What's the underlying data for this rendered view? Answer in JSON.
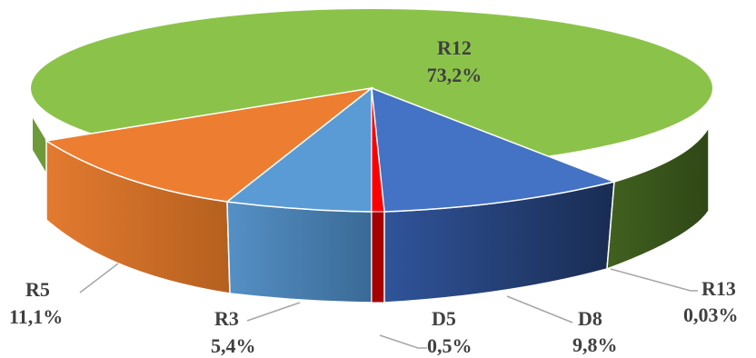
{
  "chart_data": {
    "type": "pie",
    "style": "3d",
    "title": "",
    "slices": [
      {
        "name": "R12",
        "value": 73.2,
        "label": "73,2%",
        "color": "#8bc34a",
        "side_color": "#3d5a1f"
      },
      {
        "name": "R13",
        "value": 0.03,
        "label": "0,03%",
        "color": "#8bc34a",
        "side_color": "#3d5a1f"
      },
      {
        "name": "D8",
        "value": 9.8,
        "label": "9,8%",
        "color": "#4472c4",
        "side_color": "#1f3560"
      },
      {
        "name": "D5",
        "value": 0.5,
        "label": "0,5%",
        "color": "#ff0000",
        "side_color": "#a50000"
      },
      {
        "name": "R3",
        "value": 5.4,
        "label": "5,4%",
        "color": "#5b9bd5",
        "side_color": "#3a6d99"
      },
      {
        "name": "R5",
        "value": 11.1,
        "label": "11,1%",
        "color": "#ed7d31",
        "side_color": "#c0621f"
      }
    ],
    "legend": "none",
    "data_labels": true
  }
}
